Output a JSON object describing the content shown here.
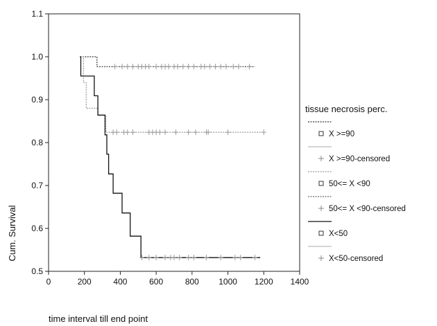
{
  "chart_data": {
    "type": "line",
    "step": true,
    "xlabel": "time interval till end point",
    "ylabel": "Cum. Survival",
    "xlim": [
      0,
      1400
    ],
    "ylim": [
      0.5,
      1.1
    ],
    "xticks": [
      0,
      200,
      400,
      600,
      800,
      1000,
      1200,
      1400
    ],
    "yticks": [
      0.5,
      0.6,
      0.7,
      0.8,
      0.9,
      1.0,
      1.1
    ],
    "ytick_labels": [
      "0.5",
      "0.6",
      "0.7",
      "0.8",
      "0.9",
      "1.0",
      "1.1"
    ],
    "grid": false,
    "legend_title": "tissue necrosis perc.",
    "legend_position": "right",
    "series": [
      {
        "name": "X >=90",
        "color": "#333333",
        "style": "dotted",
        "points": [
          [
            175,
            1.0
          ],
          [
            270,
            1.0
          ],
          [
            270,
            0.977
          ],
          [
            1150,
            0.977
          ]
        ],
        "censored": [
          370,
          410,
          440,
          470,
          500,
          520,
          540,
          560,
          600,
          630,
          650,
          670,
          700,
          720,
          750,
          780,
          810,
          850,
          870,
          900,
          930,
          960,
          990,
          1030,
          1060,
          1120
        ]
      },
      {
        "name": "50<= X <90",
        "color": "#999999",
        "style": "dotted",
        "points": [
          [
            175,
            1.0
          ],
          [
            195,
            1.0
          ],
          [
            195,
            0.94
          ],
          [
            210,
            0.94
          ],
          [
            210,
            0.88
          ],
          [
            275,
            0.88
          ],
          [
            275,
            0.864
          ],
          [
            320,
            0.864
          ],
          [
            320,
            0.824
          ],
          [
            1200,
            0.824
          ]
        ],
        "censored": [
          360,
          380,
          420,
          440,
          470,
          560,
          580,
          600,
          620,
          650,
          710,
          780,
          820,
          880,
          890,
          1000,
          1200
        ]
      },
      {
        "name": "X<50",
        "color": "#111111",
        "style": "solid",
        "points": [
          [
            175,
            1.0
          ],
          [
            180,
            1.0
          ],
          [
            180,
            0.955
          ],
          [
            255,
            0.955
          ],
          [
            255,
            0.909
          ],
          [
            275,
            0.909
          ],
          [
            275,
            0.864
          ],
          [
            315,
            0.864
          ],
          [
            315,
            0.818
          ],
          [
            325,
            0.818
          ],
          [
            325,
            0.773
          ],
          [
            335,
            0.773
          ],
          [
            335,
            0.727
          ],
          [
            360,
            0.727
          ],
          [
            360,
            0.682
          ],
          [
            410,
            0.682
          ],
          [
            410,
            0.636
          ],
          [
            455,
            0.636
          ],
          [
            455,
            0.582
          ],
          [
            515,
            0.582
          ],
          [
            515,
            0.532
          ],
          [
            1180,
            0.532
          ]
        ],
        "censored": [
          520,
          560,
          600,
          650,
          680,
          700,
          730,
          780,
          810,
          880,
          960,
          1040,
          1070,
          1150
        ]
      }
    ],
    "legend": [
      {
        "label": "X >=90",
        "marker": "square",
        "line_color": "#333333",
        "line_style": "dotted"
      },
      {
        "label": "X >=90-censored",
        "marker": "plus",
        "line_color": "#bbbbbb",
        "line_style": "solid"
      },
      {
        "label": "50<= X <90",
        "marker": "square",
        "line_color": "#999999",
        "line_style": "dotted"
      },
      {
        "label": "50<= X <90-censored",
        "marker": "plus",
        "line_color": "#666666",
        "line_style": "dotted"
      },
      {
        "label": "X<50",
        "marker": "square",
        "line_color": "#111111",
        "line_style": "solid"
      },
      {
        "label": "X<50-censored",
        "marker": "plus",
        "line_color": "#bbbbbb",
        "line_style": "solid"
      }
    ]
  }
}
